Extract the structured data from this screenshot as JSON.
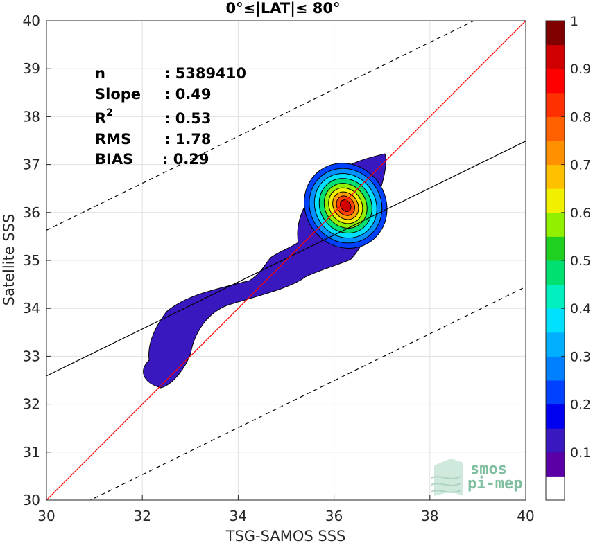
{
  "chart_data": {
    "type": "heatmap",
    "title": "0°≤|LAT|≤ 80°",
    "xlabel": "TSG-SAMOS SSS",
    "ylabel": "Satellite SSS",
    "xlim": [
      30,
      40
    ],
    "ylim": [
      30,
      40
    ],
    "xticks": [
      "30",
      "32",
      "34",
      "36",
      "38",
      "40"
    ],
    "yticks": [
      "30",
      "31",
      "32",
      "33",
      "34",
      "35",
      "36",
      "37",
      "38",
      "39",
      "40"
    ],
    "grid": true,
    "stats": [
      {
        "label": "n",
        "value": ": 5389410"
      },
      {
        "label": "Slope",
        "value": ": 0.49"
      },
      {
        "label": "R",
        "sup": "2",
        "value": ": 0.53"
      },
      {
        "label": "RMS",
        "value": ": 1.78"
      },
      {
        "label": "BIAS",
        "value": ": 0.29"
      }
    ],
    "lines": {
      "identity": {
        "x": [
          30,
          40
        ],
        "y": [
          30,
          40
        ],
        "color": "#ff0000"
      },
      "fit": {
        "x": [
          30,
          40
        ],
        "y": [
          32.59,
          37.49
        ],
        "color": "#000000"
      },
      "upper_dashed": {
        "x": [
          30,
          40
        ],
        "y": [
          35.63,
          40.53
        ],
        "color": "#000000"
      },
      "lower_dashed": {
        "x": [
          30,
          40
        ],
        "y": [
          29.55,
          34.45
        ],
        "color": "#000000"
      }
    },
    "density_peak": {
      "x": 36.2,
      "y": 36.2
    },
    "colorbar": {
      "ticks": [
        "0.1",
        "0.2",
        "0.3",
        "0.4",
        "0.5",
        "0.6",
        "0.7",
        "0.8",
        "0.9",
        "1"
      ],
      "range": [
        0,
        1
      ],
      "colors": [
        "#ffffff",
        "#5a00a6",
        "#3a18c0",
        "#0000f0",
        "#0040ff",
        "#0080ff",
        "#00b0ff",
        "#00e0ff",
        "#00f0c0",
        "#00e070",
        "#20d020",
        "#90f000",
        "#f0f000",
        "#ffc000",
        "#ff9000",
        "#ff6000",
        "#ff3000",
        "#ff0000",
        "#d00000",
        "#800000"
      ]
    },
    "contour_levels": [
      {
        "level": 0.05,
        "color": "#3a18c0"
      },
      {
        "level": 0.15,
        "color": "#0040ff"
      },
      {
        "level": 0.25,
        "color": "#0090ff"
      },
      {
        "level": 0.35,
        "color": "#00e0ff"
      },
      {
        "level": 0.45,
        "color": "#00e070"
      },
      {
        "level": 0.55,
        "color": "#90f000"
      },
      {
        "level": 0.65,
        "color": "#f0f000"
      },
      {
        "level": 0.75,
        "color": "#ffa000"
      },
      {
        "level": 0.85,
        "color": "#ff4000"
      },
      {
        "level": 0.95,
        "color": "#d00000"
      }
    ]
  },
  "logo": {
    "line1": "smos",
    "line2": "pi-mep"
  }
}
